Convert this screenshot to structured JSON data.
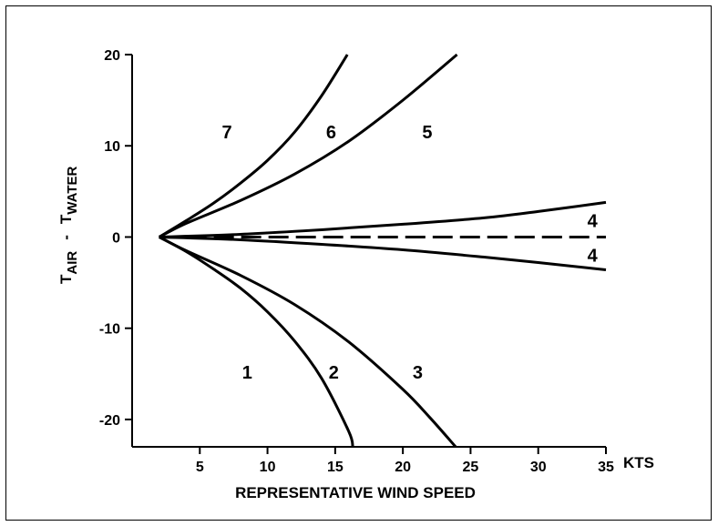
{
  "chart_data": {
    "type": "line",
    "xlabel": "REPRESENTATIVE WIND SPEED",
    "x_unit": "KTS",
    "ylabel": {
      "t1": "T",
      "sub1": "AIR",
      "dash": "-",
      "t2": "T",
      "sub2": "WATER"
    },
    "xlim": [
      0,
      35
    ],
    "ylim": [
      -23,
      20
    ],
    "x_ticks": [
      5,
      10,
      15,
      20,
      25,
      30,
      35
    ],
    "y_ticks": [
      20,
      10,
      0,
      -10,
      -20
    ],
    "grid": false,
    "series": [
      {
        "name": "1",
        "style": "solid",
        "x": [
          2,
          4,
          6,
          8,
          10,
          12,
          14,
          16,
          16.3
        ],
        "y": [
          0,
          -1.6,
          -3.5,
          -5.6,
          -8.2,
          -11.4,
          -15.5,
          -21.3,
          -23
        ]
      },
      {
        "name": "2",
        "style": "solid",
        "x": [
          2,
          4,
          8,
          12,
          16,
          20,
          22,
          23.9
        ],
        "y": [
          0,
          -1.5,
          -4.2,
          -7.4,
          -11.5,
          -16.7,
          -19.8,
          -23
        ]
      },
      {
        "name": "4",
        "style": "solid",
        "x": [
          2,
          8,
          14,
          20,
          26,
          30,
          35
        ],
        "y": [
          0,
          0.3,
          0.8,
          1.4,
          2.1,
          2.8,
          3.8
        ]
      },
      {
        "name": "4",
        "style": "dashed",
        "x": [
          2,
          35
        ],
        "y": [
          0,
          0
        ]
      },
      {
        "name": "4",
        "style": "solid",
        "x": [
          2,
          8,
          14,
          20,
          26,
          30,
          35
        ],
        "y": [
          0,
          -0.3,
          -0.8,
          -1.4,
          -2.2,
          -2.8,
          -3.6
        ]
      },
      {
        "name": "5",
        "style": "solid",
        "x": [
          2,
          4,
          8,
          12,
          16,
          20,
          24
        ],
        "y": [
          0,
          1.5,
          4.0,
          6.9,
          10.5,
          15,
          20
        ]
      },
      {
        "name": "6",
        "style": "solid",
        "x": [
          2,
          4,
          6,
          8,
          10,
          12,
          14,
          15.9
        ],
        "y": [
          0,
          1.8,
          3.7,
          5.9,
          8.4,
          11.5,
          15.5,
          20
        ]
      }
    ],
    "labels": [
      {
        "text": "7",
        "x": 7,
        "y": 11.5
      },
      {
        "text": "6",
        "x": 14.7,
        "y": 11.5
      },
      {
        "text": "5",
        "x": 21.8,
        "y": 11.5
      },
      {
        "text": "4",
        "x": 34,
        "y": 1.8
      },
      {
        "text": "4",
        "x": 34,
        "y": -2.0
      },
      {
        "text": "1",
        "x": 8.5,
        "y": -14.8
      },
      {
        "text": "2",
        "x": 14.9,
        "y": -14.8
      },
      {
        "text": "3",
        "x": 21.1,
        "y": -14.8
      }
    ]
  }
}
